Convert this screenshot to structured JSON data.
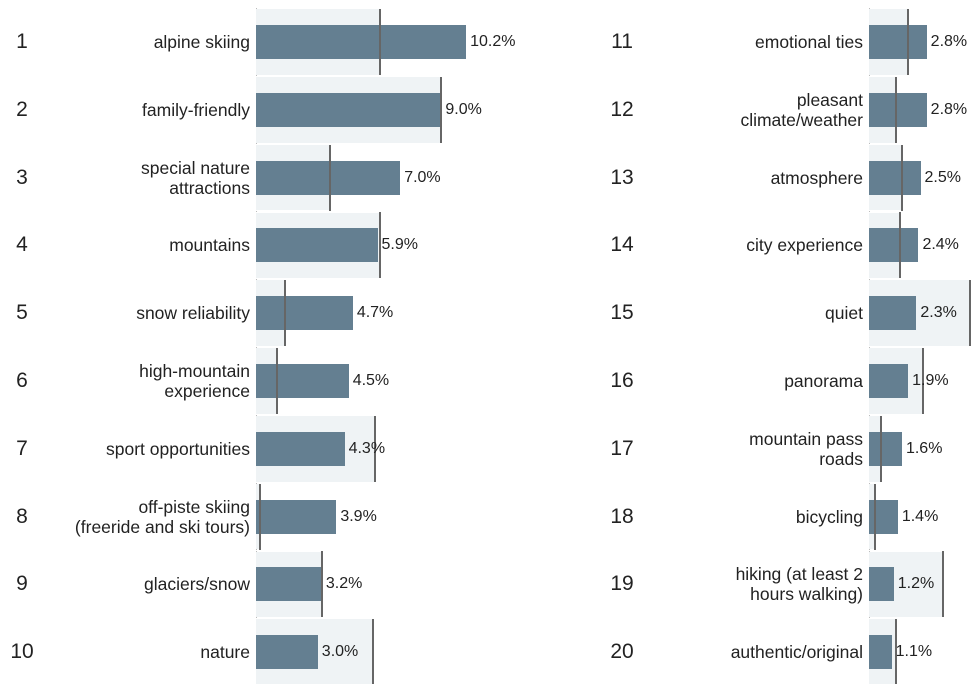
{
  "chart_data": {
    "type": "bar",
    "ranks": [
      1,
      2,
      3,
      4,
      5,
      6,
      7,
      8,
      9,
      10,
      11,
      12,
      13,
      14,
      15,
      16,
      17,
      18,
      19,
      20
    ],
    "categories": [
      "alpine skiing",
      "family-friendly",
      "special nature attractions",
      "mountains",
      "snow reliability",
      "high-mountain experience",
      "sport opportunities",
      "off-piste skiing (freeride and ski tours)",
      "glaciers/snow",
      "nature",
      "emotional ties",
      "pleasant climate/weather",
      "atmosphere",
      "city experience",
      "quiet",
      "panorama",
      "mountain pass roads",
      "bicycling",
      "hiking (at least 2 hours walking)",
      "authentic/original"
    ],
    "series": [
      {
        "color": "#647f91",
        "values": [
          10.2,
          9.0,
          7.0,
          5.9,
          4.7,
          4.5,
          4.3,
          3.9,
          3.2,
          3.0,
          2.8,
          2.8,
          2.5,
          2.4,
          2.3,
          1.9,
          1.6,
          1.4,
          1.2,
          1.1
        ],
        "value_labels": [
          "10.2%",
          "9.0%",
          "7.0%",
          "5.9%",
          "4.7%",
          "4.5%",
          "4.3%",
          "3.9%",
          "3.2%",
          "3.0%",
          "2.8%",
          "2.8%",
          "2.5%",
          "2.4%",
          "2.3%",
          "1.9%",
          "1.6%",
          "1.4%",
          "1.2%",
          "1.1%"
        ]
      }
    ],
    "reference_values": [
      6.0,
      9.0,
      3.6,
      6.0,
      1.4,
      1.0,
      5.8,
      0.2,
      3.2,
      5.7,
      1.9,
      1.3,
      1.6,
      1.5,
      4.9,
      2.6,
      0.6,
      0.3,
      3.6,
      1.3
    ],
    "reference_color": "#666666",
    "band_color": "#eff3f5"
  }
}
